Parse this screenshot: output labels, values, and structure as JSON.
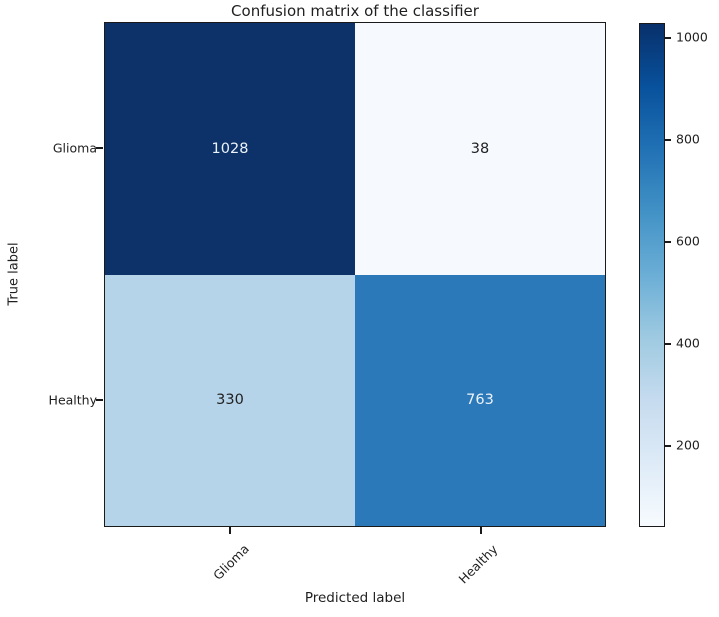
{
  "chart_data": {
    "type": "heatmap",
    "title": "Confusion matrix of the classifier",
    "xlabel": "Predicted label",
    "ylabel": "True label",
    "x_categories": [
      "Glioma",
      "Healthy"
    ],
    "y_categories": [
      "Glioma",
      "Healthy"
    ],
    "matrix": [
      [
        1028,
        38
      ],
      [
        330,
        763
      ]
    ],
    "colormap": "Blues",
    "vmin": 38,
    "vmax": 1028,
    "cells": [
      {
        "value": "1028",
        "bg": "#0c3269",
        "fg": "#edf3fa"
      },
      {
        "value": "38",
        "bg": "#f6fafe",
        "fg": "#222222"
      },
      {
        "value": "330",
        "bg": "#b5d3e9",
        "fg": "#222222"
      },
      {
        "value": "763",
        "bg": "#2b79b9",
        "fg": "#edf3fa"
      }
    ],
    "colorbar": {
      "tick_labels": [
        "1000",
        "800",
        "600",
        "400",
        "200"
      ],
      "top_color": "#08306b",
      "bottom_color": "#f7fbff",
      "legend_position": "right"
    },
    "x_tick_labels": [
      "Glioma",
      "Healthy"
    ],
    "y_tick_labels": [
      "Glioma",
      "Healthy"
    ],
    "x_tick_rotation": 45,
    "grid": "off"
  }
}
